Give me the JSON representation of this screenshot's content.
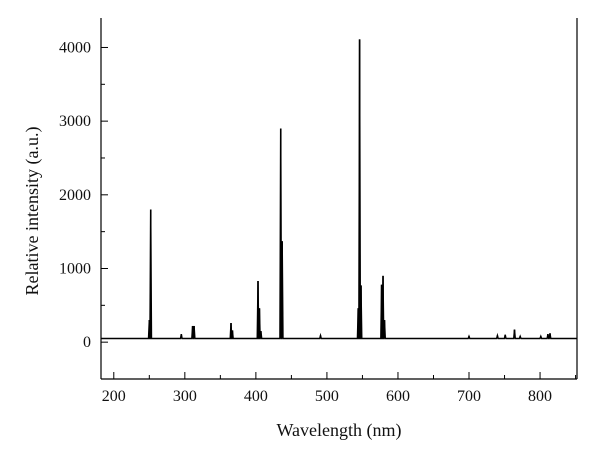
{
  "chart_data": {
    "type": "line",
    "title": "",
    "xlabel": "Wavelength (nm)",
    "ylabel": "Relative intensity (a.u.)",
    "xlim": [
      182,
      852
    ],
    "ylim": [
      -500,
      4400
    ],
    "x_ticks": [
      200,
      300,
      400,
      500,
      600,
      700,
      800
    ],
    "y_ticks": [
      0,
      1000,
      2000,
      3000,
      4000
    ],
    "x_minor_step": 50,
    "y_minor_step": 500,
    "grid": false,
    "legend": "none",
    "baseline": 50,
    "series": [
      {
        "color": "#000000",
        "peaks": [
          {
            "x": 250,
            "y": 300
          },
          {
            "x": 252,
            "y": 1800
          },
          {
            "x": 295,
            "y": 110
          },
          {
            "x": 311,
            "y": 220
          },
          {
            "x": 313,
            "y": 220
          },
          {
            "x": 365,
            "y": 260
          },
          {
            "x": 367,
            "y": 160
          },
          {
            "x": 403,
            "y": 830
          },
          {
            "x": 405,
            "y": 460
          },
          {
            "x": 407,
            "y": 150
          },
          {
            "x": 435,
            "y": 2900
          },
          {
            "x": 437,
            "y": 1370
          },
          {
            "x": 491,
            "y": 90
          },
          {
            "x": 544,
            "y": 460
          },
          {
            "x": 546,
            "y": 4110
          },
          {
            "x": 548,
            "y": 770
          },
          {
            "x": 577,
            "y": 780
          },
          {
            "x": 579,
            "y": 900
          },
          {
            "x": 581,
            "y": 300
          },
          {
            "x": 700,
            "y": 80
          },
          {
            "x": 740,
            "y": 90
          },
          {
            "x": 751,
            "y": 100
          },
          {
            "x": 764,
            "y": 170
          },
          {
            "x": 772,
            "y": 80
          },
          {
            "x": 801,
            "y": 80
          },
          {
            "x": 811,
            "y": 110
          },
          {
            "x": 814,
            "y": 120
          }
        ]
      }
    ]
  }
}
